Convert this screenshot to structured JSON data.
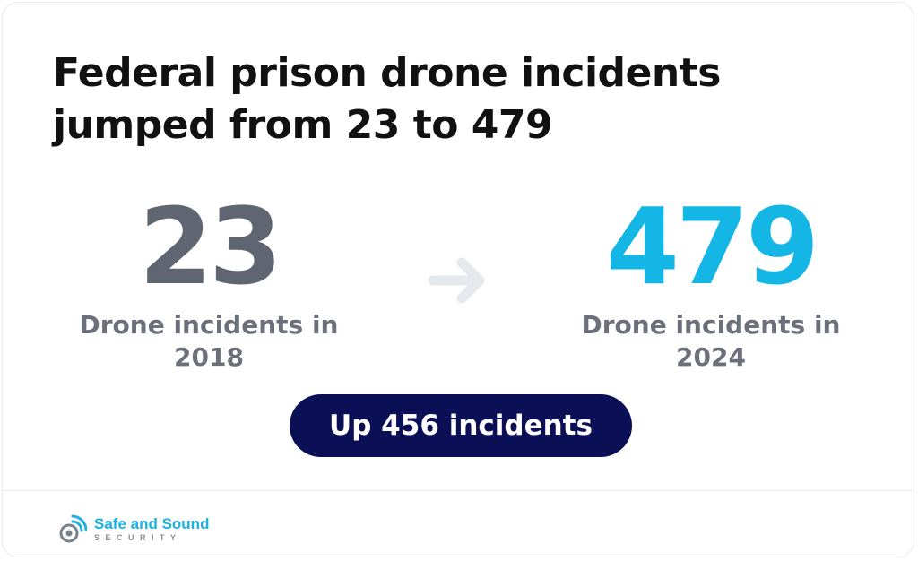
{
  "title": {
    "line1": "Federal prison drone incidents",
    "line2": "jumped from 23 to 479"
  },
  "stat_2018": {
    "value": "23",
    "caption_line1": "Drone incidents in",
    "caption_line2": "2018"
  },
  "stat_2024": {
    "value": "479",
    "caption_line1": "Drone incidents in",
    "caption_line2": "2024"
  },
  "change_badge": {
    "label": "Up 456 incidents"
  },
  "brand": {
    "name": "Safe and Sound",
    "subtitle": "SECURITY",
    "icon": "shield-wifi-icon"
  },
  "colors": {
    "heading": "#111111",
    "stat_2018": "#5f6672",
    "stat_2024": "#14b6e6",
    "badge_bg": "#0b0f55",
    "brand": "#1fb1e0",
    "arrow": "#e5e9ee"
  }
}
